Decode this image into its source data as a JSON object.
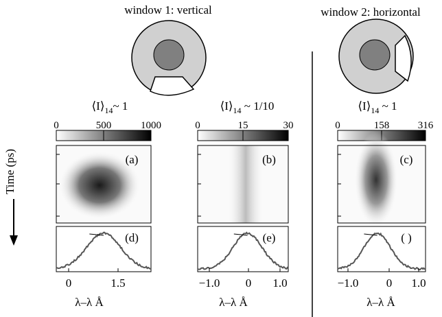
{
  "windows": [
    {
      "label": "window 1: vertical"
    },
    {
      "label": "window 2: horizontal"
    }
  ],
  "y_axis_label": "Time (ps)",
  "panels": [
    {
      "intensity": {
        "bracket": "⟨I⟩",
        "sub": "14",
        "rest": "~ 1"
      },
      "colorbar": [
        "0",
        "500",
        "1000"
      ],
      "image_label": "(a)",
      "profile_label": "(d)",
      "xticks": [
        "0",
        "1.5"
      ],
      "xlabel": "λ–λ    Å"
    },
    {
      "intensity": {
        "bracket": "⟨I⟩",
        "sub": "14",
        "rest": " ~ 1/10"
      },
      "colorbar": [
        "0",
        "15",
        "30"
      ],
      "image_label": "(b)",
      "profile_label": "(e)",
      "xticks": [
        "−1.0",
        "0",
        "1.0"
      ],
      "xlabel": "λ–λ    Å"
    },
    {
      "intensity": {
        "bracket": "⟨I⟩",
        "sub": "14",
        "rest": " ~ 1"
      },
      "colorbar": [
        "0",
        "158",
        "316"
      ],
      "image_label": "(c)",
      "profile_label": "( )",
      "xticks": [
        "−1.0",
        "0",
        "1.0"
      ],
      "xlabel": "λ–λ    Å"
    }
  ]
}
